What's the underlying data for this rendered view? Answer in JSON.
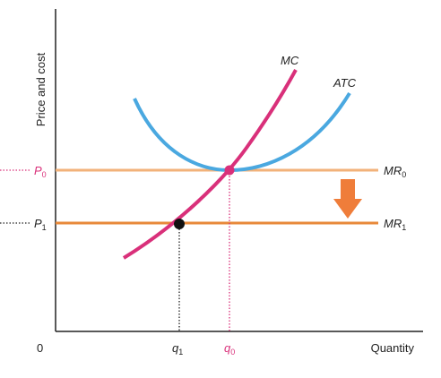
{
  "chart_data": {
    "type": "line",
    "title": "",
    "xlabel": "Quantity",
    "ylabel": "Price and cost",
    "origin_label": "0",
    "colors": {
      "mc": "#d9307a",
      "atc": "#4aa8e0",
      "mr0": "#f2b27a",
      "mr1": "#e8893a",
      "arrow": "#ef7d3a",
      "axis": "#222222",
      "dot": "#111111"
    },
    "series": [
      {
        "name": "MC",
        "label": "MC"
      },
      {
        "name": "ATC",
        "label": "ATC"
      },
      {
        "name": "MR0",
        "label_main": "MR",
        "label_sub": "0"
      },
      {
        "name": "MR1",
        "label_main": "MR",
        "label_sub": "1"
      }
    ],
    "price_labels": [
      {
        "main": "P",
        "sub": "0",
        "color": "#d9307a"
      },
      {
        "main": "P",
        "sub": "1",
        "color": "#222222"
      }
    ],
    "quantity_labels": [
      {
        "main": "q",
        "sub": "1",
        "color": "#222222"
      },
      {
        "main": "q",
        "sub": "0",
        "color": "#d9307a"
      }
    ],
    "shift": "MR0 shifts down to MR1; profit-maximizing output falls from q0 to q1 along MC"
  }
}
